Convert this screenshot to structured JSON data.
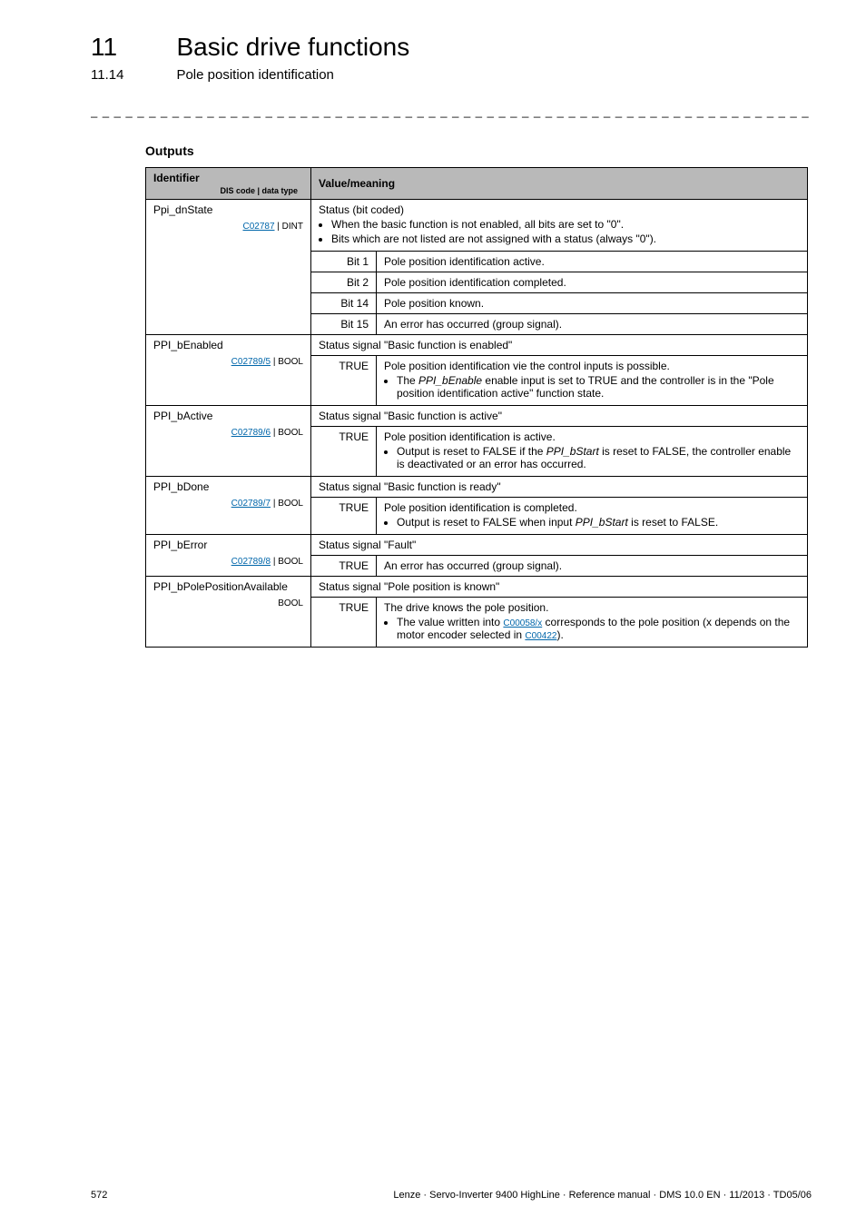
{
  "header": {
    "chapter_no": "11",
    "chapter_title": "Basic drive functions",
    "sub_no": "11.14",
    "sub_title": "Pole position identification"
  },
  "section_label": "Outputs",
  "table_headers": {
    "identifier": "Identifier",
    "dis": "DIS code | data type",
    "value": "Value/meaning"
  },
  "rows": {
    "ppi_dnState": {
      "name": "Ppi_dnState",
      "code": "C02787",
      "type": " | DINT",
      "desc_title": "Status (bit coded)",
      "desc_b1": "When the basic function is not enabled, all bits are set to \"0\".",
      "desc_b2": "Bits which are not listed are not assigned with a status (always \"0\").",
      "bits": [
        {
          "k": "Bit 1",
          "v": "Pole position identification active."
        },
        {
          "k": "Bit 2",
          "v": "Pole position identification completed."
        },
        {
          "k": "Bit 14",
          "v": "Pole position known."
        },
        {
          "k": "Bit 15",
          "v": "An error has occurred (group signal)."
        }
      ]
    },
    "ppi_bEnabled": {
      "name": "PPI_bEnabled",
      "code": "C02789/5",
      "type": " | BOOL",
      "status": "Status signal \"Basic function is enabled\"",
      "true_k": "TRUE",
      "true_v": "Pole position identification vie the control inputs is possible.",
      "true_b1a": "The ",
      "true_b1_i": "PPI_bEnable",
      "true_b1b": " enable input is set to TRUE and the controller is in the \"Pole position identification active\" function state."
    },
    "ppi_bActive": {
      "name": "PPI_bActive",
      "code": "C02789/6",
      "type": " | BOOL",
      "status": "Status signal \"Basic function is active\"",
      "true_k": "TRUE",
      "true_v": "Pole position identification is active.",
      "true_b1a": "Output is reset to FALSE if the ",
      "true_b1_i": "PPI_bStart",
      "true_b1b": " is reset to FALSE, the controller enable is deactivated or an error has occurred."
    },
    "ppi_bDone": {
      "name": "PPI_bDone",
      "code": "C02789/7",
      "type": " | BOOL",
      "status": "Status signal \"Basic function is ready\"",
      "true_k": "TRUE",
      "true_v": "Pole position identification is completed.",
      "true_b1a": "Output is reset to FALSE when input ",
      "true_b1_i": "PPI_bStart",
      "true_b1b": " is reset to FALSE."
    },
    "ppi_bError": {
      "name": "PPI_bError",
      "code": "C02789/8",
      "type": " | BOOL",
      "status": "Status signal \"Fault\"",
      "true_k": "TRUE",
      "true_v": "An error has occurred (group signal)."
    },
    "ppi_bPole": {
      "name": "PPI_bPolePositionAvailable",
      "type": "BOOL",
      "status": "Status signal \"Pole position is known\"",
      "true_k": "TRUE",
      "true_v": "The drive knows the pole position.",
      "b1_pre": "The value written into ",
      "b1_link": "C00058/x",
      "b1_mid": " corresponds to the pole position (x depends on the motor encoder selected in ",
      "b1_link2": "C00422",
      "b1_post": ")."
    }
  },
  "footer": {
    "page": "572",
    "text": "Lenze · Servo-Inverter 9400 HighLine · Reference manual · DMS 10.0 EN · 11/2013 · TD05/06"
  }
}
